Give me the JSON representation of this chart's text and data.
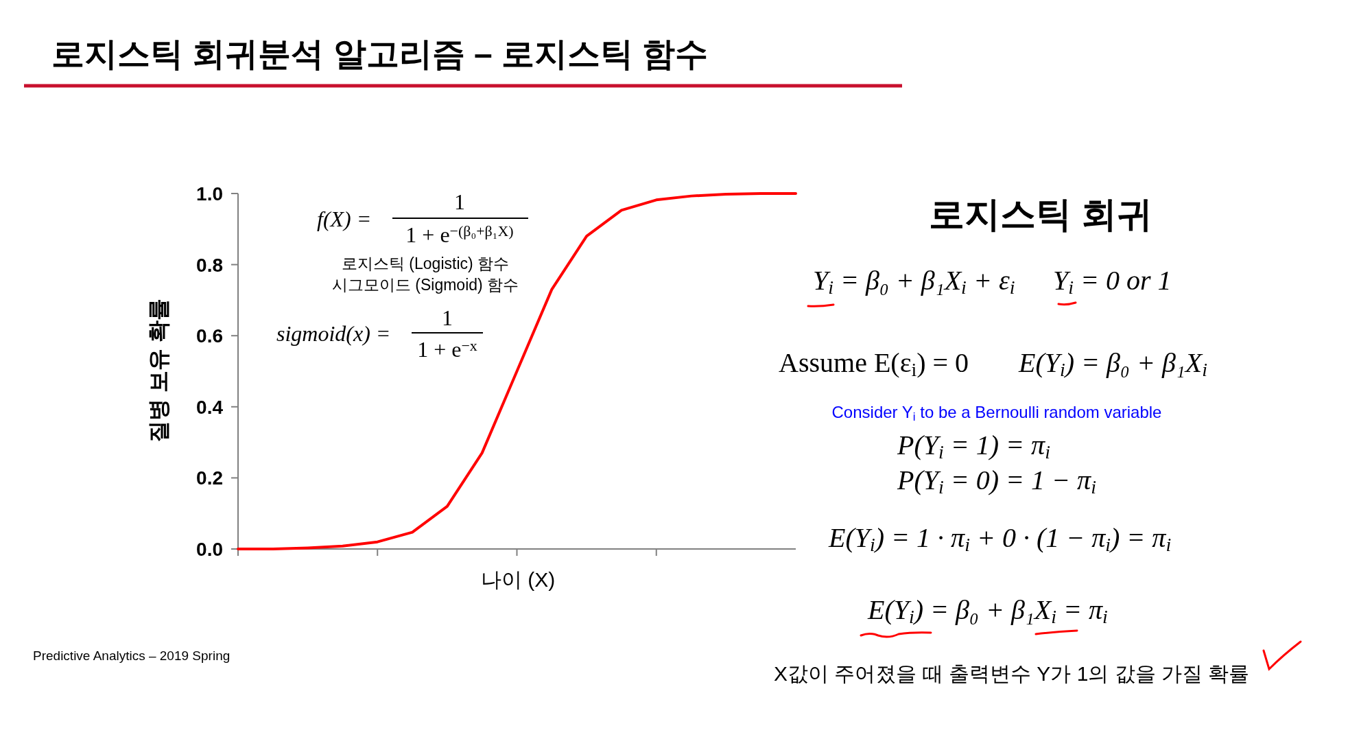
{
  "chart_data": {
    "type": "line",
    "title": "로지스틱 회귀분석 알고리즘 – 로지스틱 함수",
    "xlabel": "나이 (X)",
    "ylabel": "질병 보유 확률",
    "categories": [
      null,
      null,
      null,
      null,
      null,
      null,
      null,
      null,
      null,
      null,
      null,
      null,
      null,
      null,
      null,
      null,
      null
    ],
    "series": [
      {
        "color": "#ff0000",
        "values": [
          0.0,
          0.0,
          0.003,
          0.008,
          0.02,
          0.047,
          0.12,
          0.27,
          0.5,
          0.73,
          0.88,
          0.953,
          0.982,
          0.993,
          0.998,
          1.0,
          1.0
        ]
      }
    ],
    "ylim": [
      0,
      1
    ],
    "yticks": [
      {
        "value": 0,
        "label": "0.0"
      },
      {
        "value": 0.2,
        "label": "0.2"
      },
      {
        "value": 0.4,
        "label": "0.4"
      },
      {
        "value": 0.6,
        "label": "0.6"
      },
      {
        "value": 0.8,
        "label": "0.8"
      },
      {
        "value": 1,
        "label": "1.0"
      }
    ],
    "annotations": [
      "f(X) =",
      "1",
      "1 + e$^{−(β₀+β₁X)}$",
      "로지스틱 (Logistic) 함수",
      "시그모이드 (Sigmoid) 함수",
      "sigmoid(x) =",
      "1",
      "1 + e$^{−x}$",
      "로지스틱 회귀",
      "Y$_{i}$ = β₀ + β₁X$_{i}$ + ε$_{i}$",
      "Y$_{i}$ = 0 or 1",
      "Assume E(ε$_{i}$) = 0",
      "E(Y$_{i}$) = β₀ + β₁X$_{i}$",
      "Consider Y$_{i}$ to be a Bernoulli random variable",
      "P(Y$_{i}$ = 1) = π$_{i}$",
      "P(Y$_{i}$ = 0) = 1 − π$_{i}$",
      "E(Y$_{i}$) = 1 · π$_{i}$ + 0 · (1 − π$_{i}$) = π$_{i}$",
      "E(Y$_{i}$) = β₀ + β₁X$_{i}$ = π$_{i}$",
      "X값이 주어졌을 때 출력변수 Y가 1의 값을 가질 확률",
      "Predictive Analytics – 2019 Spring"
    ]
  }
}
